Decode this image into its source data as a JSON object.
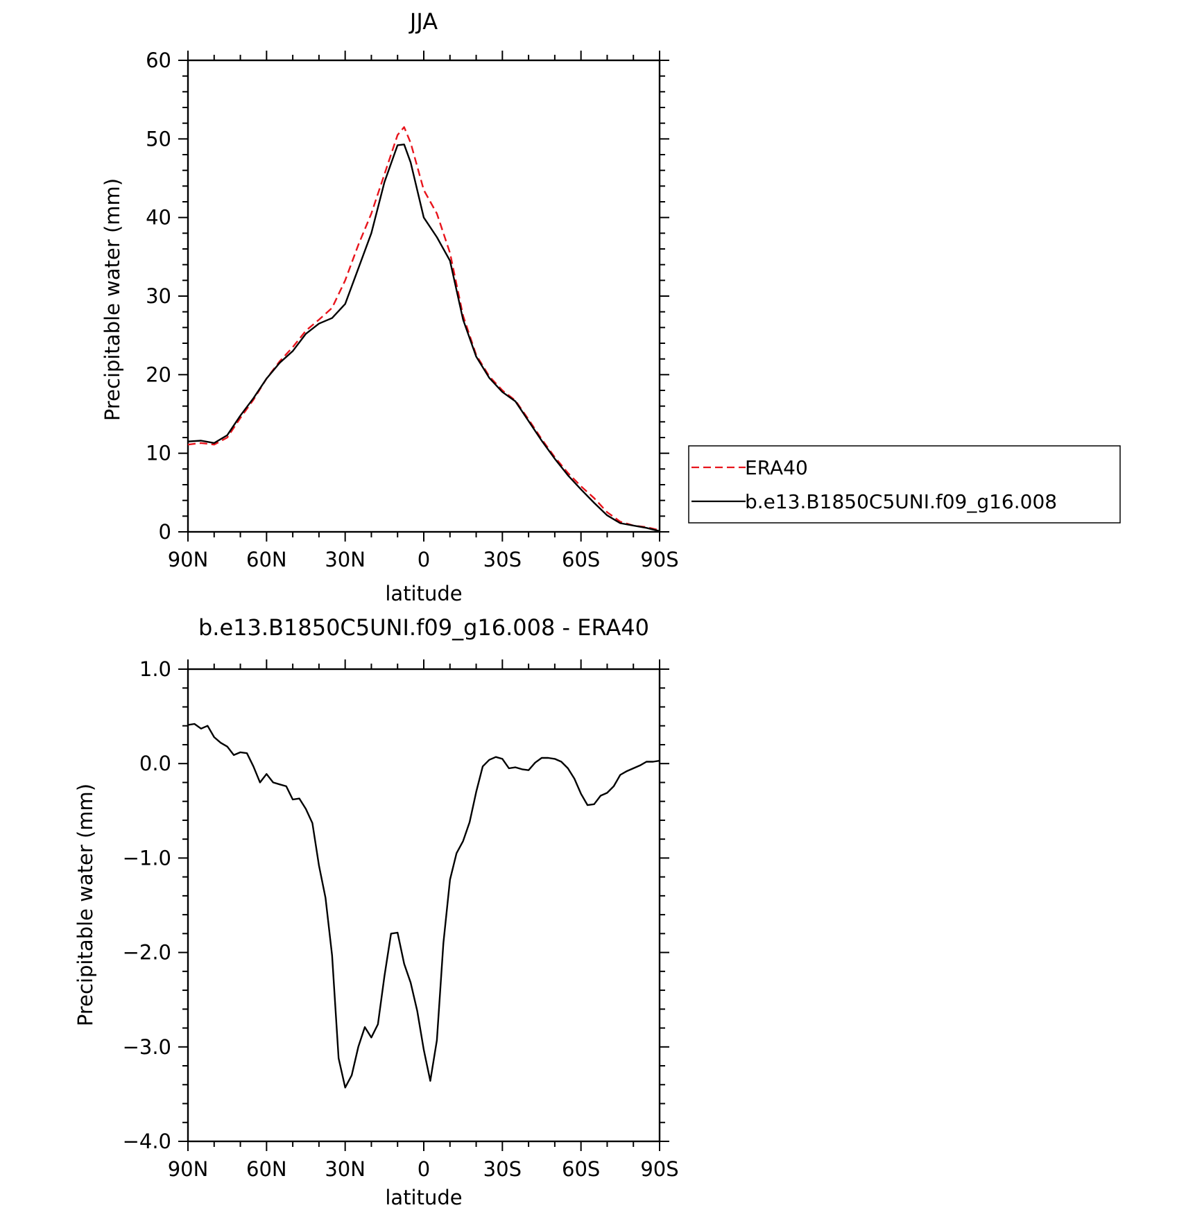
{
  "chart_data": [
    {
      "type": "line",
      "title": "JJA",
      "xlabel": "latitude",
      "ylabel": "Precipitable water (mm)",
      "xlim": [
        90,
        -90
      ],
      "ylim": [
        0,
        60
      ],
      "x_ticks": [
        90,
        60,
        30,
        0,
        -30,
        -60,
        -90
      ],
      "x_tick_labels": [
        "90N",
        "60N",
        "30N",
        "0",
        "30S",
        "60S",
        "90S"
      ],
      "y_ticks": [
        0,
        10,
        20,
        30,
        40,
        50,
        60
      ],
      "y_tick_labels": [
        "0",
        "10",
        "20",
        "30",
        "40",
        "50",
        "60"
      ],
      "legend_position": "right",
      "series": [
        {
          "name": "ERA40",
          "color": "#e8141c",
          "dash": "dashed",
          "x": [
            90,
            85,
            80,
            75,
            70,
            65,
            60,
            55,
            50,
            45,
            40,
            35,
            30,
            25,
            20,
            15,
            10,
            7.5,
            5,
            0,
            -5,
            -10,
            -15,
            -20,
            -25,
            -30,
            -35,
            -40,
            -45,
            -50,
            -55,
            -60,
            -65,
            -70,
            -75,
            -80,
            -85,
            -90
          ],
          "y": [
            11.1,
            11.3,
            11.1,
            12.0,
            14.5,
            16.8,
            19.5,
            21.7,
            23.5,
            25.6,
            27.0,
            28.5,
            32.0,
            36.5,
            40.5,
            45.5,
            50.5,
            51.5,
            49.5,
            43.5,
            40.5,
            35.5,
            27.5,
            22.5,
            19.8,
            18.0,
            16.7,
            14.3,
            11.8,
            9.5,
            7.5,
            5.8,
            4.3,
            2.5,
            1.3,
            0.8,
            0.6,
            0.2
          ]
        },
        {
          "name": "b.e13.B1850C5UNI.f09_g16.008",
          "color": "#000000",
          "dash": "solid",
          "x": [
            90,
            85,
            80,
            75,
            70,
            65,
            60,
            55,
            50,
            45,
            40,
            35,
            30,
            25,
            20,
            15,
            10,
            7.5,
            5,
            0,
            -5,
            -10,
            -15,
            -20,
            -25,
            -30,
            -35,
            -40,
            -45,
            -50,
            -55,
            -60,
            -65,
            -70,
            -75,
            -80,
            -85,
            -90
          ],
          "y": [
            11.5,
            11.6,
            11.3,
            12.3,
            14.8,
            17.0,
            19.5,
            21.5,
            23.0,
            25.2,
            26.5,
            27.2,
            29.0,
            33.5,
            38.0,
            44.5,
            49.2,
            49.3,
            47.0,
            40.0,
            37.5,
            34.5,
            27.0,
            22.3,
            19.6,
            17.8,
            16.6,
            14.1,
            11.6,
            9.3,
            7.2,
            5.4,
            3.7,
            2.1,
            1.1,
            0.8,
            0.5,
            0.1
          ]
        }
      ]
    },
    {
      "type": "line",
      "title": "b.e13.B1850C5UNI.f09_g16.008 - ERA40",
      "xlabel": "latitude",
      "ylabel": "Precipitable water (mm)",
      "xlim": [
        90,
        -90
      ],
      "ylim": [
        -4.0,
        1.0
      ],
      "x_ticks": [
        90,
        60,
        30,
        0,
        -30,
        -60,
        -90
      ],
      "x_tick_labels": [
        "90N",
        "60N",
        "30N",
        "0",
        "30S",
        "60S",
        "90S"
      ],
      "y_ticks": [
        1.0,
        0.0,
        -1.0,
        -2.0,
        -3.0,
        -4.0
      ],
      "y_tick_labels": [
        "1.0",
        "0.0",
        "−1.0",
        "−2.0",
        "−3.0",
        "−4.0"
      ],
      "series": [
        {
          "color": "#000000",
          "dash": "solid",
          "x": [
            90,
            87.5,
            85,
            82.5,
            80,
            77.5,
            75,
            72.5,
            70,
            67.5,
            65,
            62.5,
            60,
            57.5,
            55,
            52.5,
            50,
            47.5,
            45,
            42.5,
            40,
            37.5,
            35,
            32.5,
            30,
            27.5,
            25,
            22.5,
            20,
            17.5,
            15,
            12.5,
            10,
            7.5,
            5,
            2.5,
            0,
            -2.5,
            -5,
            -7.5,
            -10,
            -12.5,
            -15,
            -17.5,
            -20,
            -22.5,
            -25,
            -27.5,
            -30,
            -32.5,
            -35,
            -37.5,
            -40,
            -42.5,
            -45,
            -47.5,
            -50,
            -52.5,
            -55,
            -57.5,
            -60,
            -62.5,
            -65,
            -67.5,
            -70,
            -72.5,
            -75,
            -77.5,
            -80,
            -82.5,
            -85,
            -87.5,
            -90
          ],
          "y": [
            0.41,
            0.42,
            0.37,
            0.4,
            0.28,
            0.22,
            0.18,
            0.09,
            0.12,
            0.11,
            -0.03,
            -0.2,
            -0.11,
            -0.2,
            -0.22,
            -0.24,
            -0.38,
            -0.37,
            -0.48,
            -0.63,
            -1.08,
            -1.42,
            -2.03,
            -3.12,
            -3.43,
            -3.3,
            -3.0,
            -2.79,
            -2.9,
            -2.76,
            -2.25,
            -1.8,
            -1.79,
            -2.12,
            -2.32,
            -2.62,
            -3.03,
            -3.36,
            -2.93,
            -1.9,
            -1.23,
            -0.95,
            -0.82,
            -0.62,
            -0.3,
            -0.03,
            0.04,
            0.07,
            0.05,
            -0.05,
            -0.04,
            -0.06,
            -0.07,
            0.01,
            0.06,
            0.06,
            0.05,
            0.02,
            -0.05,
            -0.16,
            -0.32,
            -0.44,
            -0.43,
            -0.34,
            -0.31,
            -0.24,
            -0.12,
            -0.08,
            -0.05,
            -0.02,
            0.02,
            0.02,
            0.03
          ]
        }
      ]
    }
  ]
}
